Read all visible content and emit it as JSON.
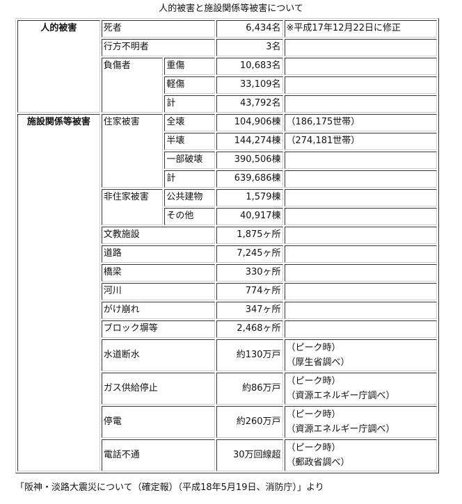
{
  "title": "人的被害と施設関係等被害について",
  "human": {
    "header": "人的被害",
    "deaths": {
      "label": "死者",
      "value": "6,434名",
      "note": "※平成17年12月22日に修正"
    },
    "missing": {
      "label": "行方不明者",
      "value": "3名"
    },
    "injured": {
      "label": "負傷者",
      "severe": {
        "label": "重傷",
        "value": "10,683名"
      },
      "minor": {
        "label": "軽傷",
        "value": "33,109名"
      },
      "total": {
        "label": "計",
        "value": "43,792名"
      }
    }
  },
  "facility": {
    "header": "施設関係等被害",
    "housing": {
      "label": "住家被害",
      "full": {
        "label": "全壊",
        "value": "104,906棟",
        "note": "（186,175世帯）"
      },
      "half": {
        "label": "半壊",
        "value": "144,274棟",
        "note": "（274,181世帯）"
      },
      "partial": {
        "label": "一部破壊",
        "value": "390,506棟"
      },
      "total": {
        "label": "計",
        "value": "639,686棟"
      }
    },
    "nonhousing": {
      "label": "非住家被害",
      "public": {
        "label": "公共建物",
        "value": "1,579棟"
      },
      "other": {
        "label": "その他",
        "value": "40,917棟"
      }
    },
    "rows": [
      {
        "label": "文教施設",
        "value": "1,875ヶ所"
      },
      {
        "label": "道路",
        "value": "7,245ヶ所"
      },
      {
        "label": "橋梁",
        "value": "330ヶ所"
      },
      {
        "label": "河川",
        "value": "774ヶ所"
      },
      {
        "label": "がけ崩れ",
        "value": "347ヶ所"
      },
      {
        "label": "ブロック塀等",
        "value": "2,468ヶ所"
      }
    ],
    "utilities": [
      {
        "label": "水道断水",
        "value": "約130万戸",
        "note1": "（ピーク時）",
        "note2": "（厚生省調べ）"
      },
      {
        "label": "ガス供給停止",
        "value": "約86万戸",
        "note1": "（ピーク時）",
        "note2": "（資源エネルギー庁調べ）"
      },
      {
        "label": "停電",
        "value": "約260万戸",
        "note1": "（ピーク時）",
        "note2": "（資源エネルギー庁調べ）"
      },
      {
        "label": "電話不通",
        "value": "30万回線超",
        "note1": "（ピーク時）",
        "note2": "（郵政省調べ）"
      }
    ]
  },
  "source": "「阪神・淡路大震災について（確定報）（平成18年5月19日、消防庁）」より"
}
